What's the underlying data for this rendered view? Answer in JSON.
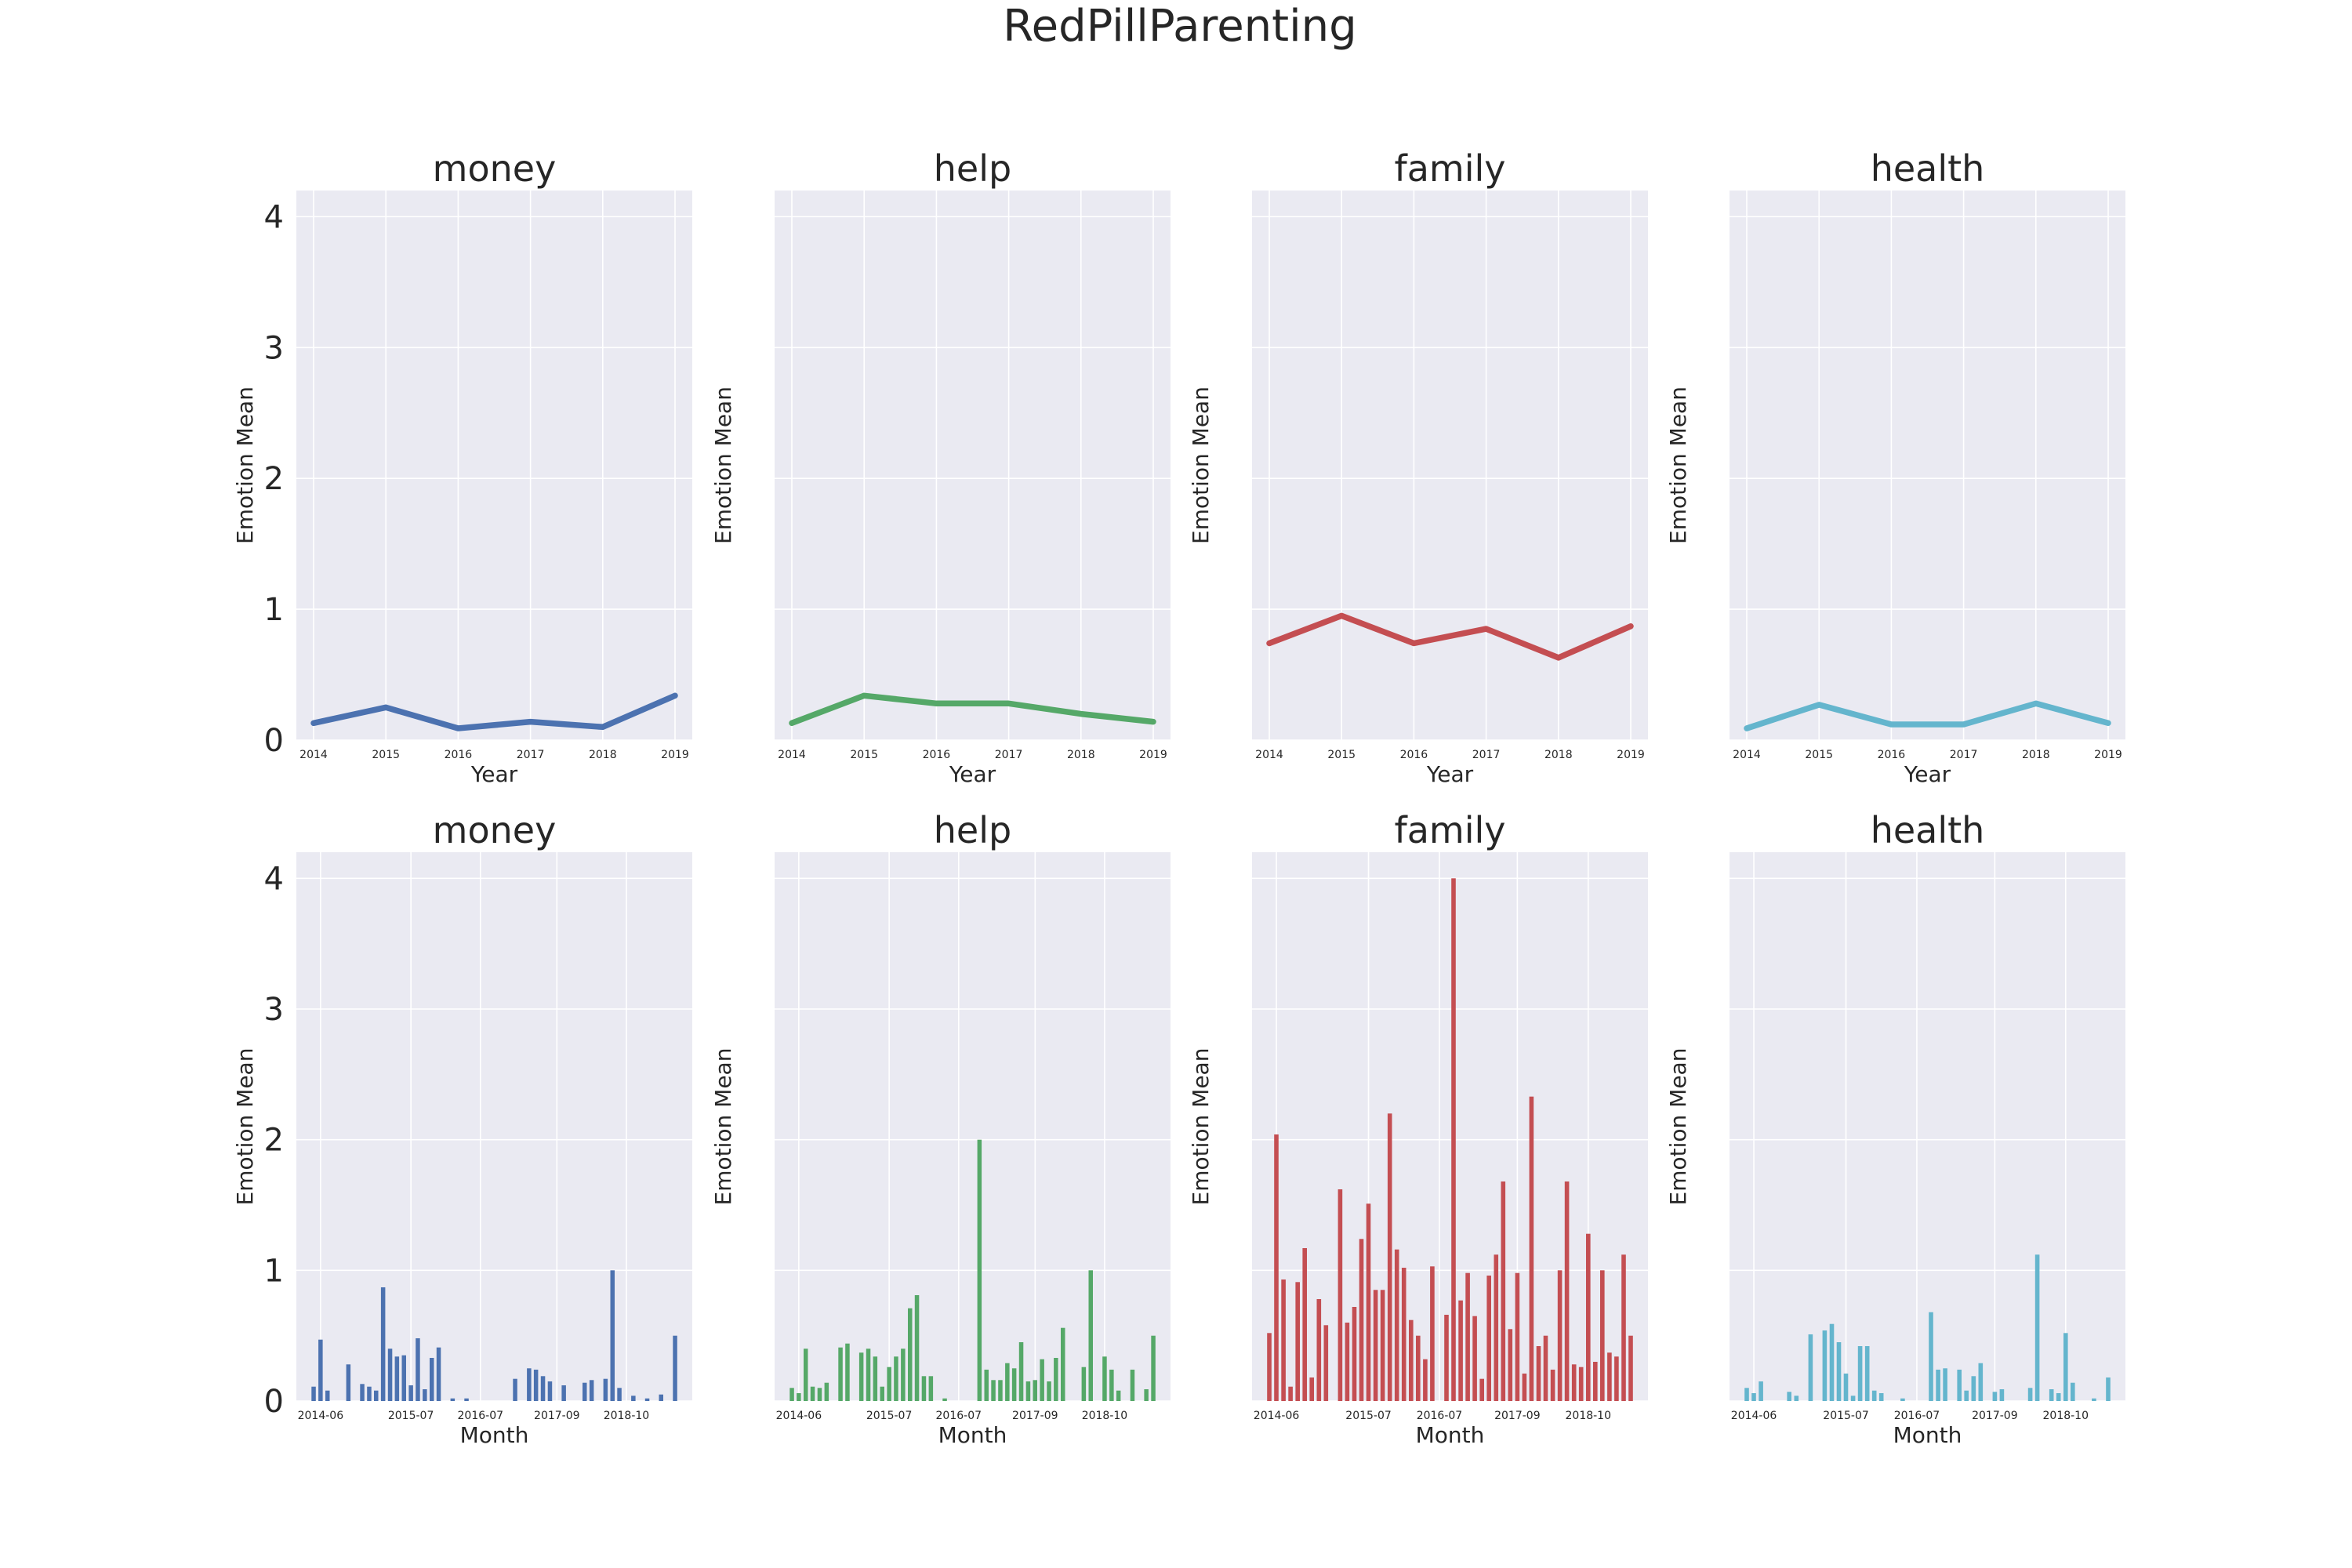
{
  "figure": {
    "title": "RedPillParenting"
  },
  "chart_data": [
    {
      "type": "line",
      "title": "money",
      "xlabel": "Year",
      "ylabel": "Emotion Mean",
      "x": [
        "2014",
        "2015",
        "2016",
        "2017",
        "2018",
        "2019"
      ],
      "values": [
        0.13,
        0.25,
        0.09,
        0.14,
        0.1,
        0.34
      ],
      "ylim": [
        0,
        4.2
      ],
      "yticks": [
        "0",
        "1",
        "2",
        "3",
        "4"
      ],
      "color": "#4c72b0",
      "grid": true
    },
    {
      "type": "line",
      "title": "help",
      "xlabel": "Year",
      "ylabel": "Emotion Mean",
      "x": [
        "2014",
        "2015",
        "2016",
        "2017",
        "2018",
        "2019"
      ],
      "values": [
        0.13,
        0.34,
        0.28,
        0.28,
        0.2,
        0.14
      ],
      "ylim": [
        0,
        4.2
      ],
      "yticks": [],
      "color": "#55a868",
      "grid": true
    },
    {
      "type": "line",
      "title": "family",
      "xlabel": "Year",
      "ylabel": "Emotion Mean",
      "x": [
        "2014",
        "2015",
        "2016",
        "2017",
        "2018",
        "2019"
      ],
      "values": [
        0.74,
        0.95,
        0.74,
        0.85,
        0.63,
        0.87
      ],
      "ylim": [
        0,
        4.2
      ],
      "yticks": [],
      "color": "#c44e52",
      "grid": true
    },
    {
      "type": "line",
      "title": "health",
      "xlabel": "Year",
      "ylabel": "Emotion Mean",
      "x": [
        "2014",
        "2015",
        "2016",
        "2017",
        "2018",
        "2019"
      ],
      "values": [
        0.09,
        0.27,
        0.12,
        0.12,
        0.28,
        0.13
      ],
      "ylim": [
        0,
        4.2
      ],
      "yticks": [],
      "color": "#64b5cd",
      "grid": true
    },
    {
      "type": "bar",
      "title": "money",
      "xlabel": "Month",
      "ylabel": "Emotion Mean",
      "x_tick_labels": [
        "2014-06",
        "2015-07",
        "2016-07",
        "2017-09",
        "2018-10"
      ],
      "values": [
        0.11,
        0.47,
        0.08,
        0,
        0,
        0.28,
        0,
        0.13,
        0.11,
        0.08,
        0.87,
        0.4,
        0.34,
        0.35,
        0.12,
        0.48,
        0.09,
        0.33,
        0.41,
        0,
        0.02,
        0,
        0.02,
        0,
        0,
        0,
        0,
        0,
        0,
        0.17,
        0,
        0.25,
        0.24,
        0.19,
        0.15,
        0,
        0.12,
        0,
        0,
        0.14,
        0.16,
        0,
        0.17,
        1.0,
        0.1,
        0,
        0.04,
        0,
        0.02,
        0,
        0.05,
        0,
        0.5
      ],
      "ylim": [
        0,
        4.2
      ],
      "yticks": [
        "0",
        "1",
        "2",
        "3",
        "4"
      ],
      "color": "#4c72b0",
      "grid": true
    },
    {
      "type": "bar",
      "title": "help",
      "xlabel": "Month",
      "ylabel": "Emotion Mean",
      "x_tick_labels": [
        "2014-06",
        "2015-07",
        "2016-07",
        "2017-09",
        "2018-10"
      ],
      "values": [
        0.1,
        0.06,
        0.4,
        0.11,
        0.1,
        0.14,
        0,
        0.41,
        0.44,
        0,
        0.37,
        0.4,
        0.34,
        0.11,
        0.26,
        0.34,
        0.4,
        0.71,
        0.81,
        0.19,
        0.19,
        0,
        0.02,
        0,
        0,
        0,
        0,
        2.0,
        0.24,
        0.16,
        0.16,
        0.29,
        0.25,
        0.45,
        0.15,
        0.16,
        0.32,
        0.15,
        0.33,
        0.56,
        0,
        0,
        0.26,
        1.0,
        0,
        0.34,
        0.24,
        0.08,
        0,
        0.24,
        0,
        0.09,
        0.5
      ],
      "ylim": [
        0,
        4.2
      ],
      "yticks": [],
      "color": "#55a868",
      "grid": true
    },
    {
      "type": "bar",
      "title": "family",
      "xlabel": "Month",
      "ylabel": "Emotion Mean",
      "x_tick_labels": [
        "2014-06",
        "2015-07",
        "2016-07",
        "2017-09",
        "2018-10"
      ],
      "values": [
        0.52,
        2.04,
        0.93,
        0.11,
        0.91,
        1.17,
        0.18,
        0.78,
        0.58,
        0,
        1.62,
        0.6,
        0.72,
        1.24,
        1.51,
        0.85,
        0.85,
        2.2,
        1.16,
        1.02,
        0.62,
        0.5,
        0.32,
        1.03,
        0,
        0.66,
        4.0,
        0.77,
        0.98,
        0.65,
        0.17,
        0.96,
        1.12,
        1.68,
        0.55,
        0.98,
        0.21,
        2.33,
        0.42,
        0.5,
        0.24,
        1.0,
        1.68,
        0.28,
        0.26,
        1.28,
        0.3,
        1.0,
        0.37,
        0.34,
        1.12,
        0.5
      ],
      "ylim": [
        0,
        4.2
      ],
      "yticks": [],
      "color": "#c44e52",
      "grid": true
    },
    {
      "type": "bar",
      "title": "health",
      "xlabel": "Month",
      "ylabel": "Emotion Mean",
      "x_tick_labels": [
        "2014-06",
        "2015-07",
        "2016-07",
        "2017-09",
        "2018-10"
      ],
      "values": [
        0.1,
        0.06,
        0.15,
        0,
        0,
        0,
        0.07,
        0.04,
        0,
        0.51,
        0,
        0.54,
        0.59,
        0.45,
        0.21,
        0.04,
        0.42,
        0.42,
        0.08,
        0.06,
        0,
        0,
        0.02,
        0,
        0,
        0,
        0.68,
        0.24,
        0.25,
        0,
        0.24,
        0.08,
        0.19,
        0.29,
        0,
        0.07,
        0.09,
        0,
        0,
        0,
        0.1,
        1.12,
        0,
        0.09,
        0.06,
        0.52,
        0.14,
        0,
        0,
        0.02,
        0,
        0.18
      ],
      "ylim": [
        0,
        4.2
      ],
      "yticks": [],
      "color": "#64b5cd",
      "grid": true
    }
  ]
}
